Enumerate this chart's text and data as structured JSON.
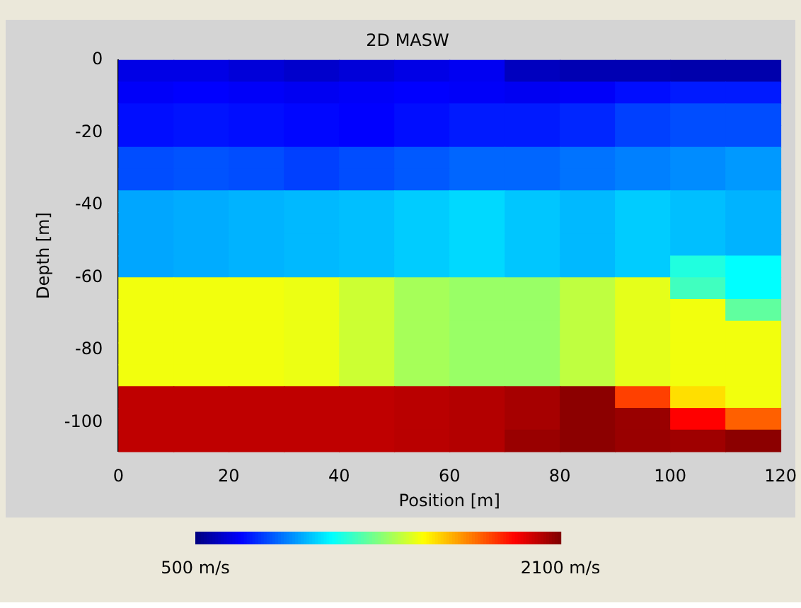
{
  "chart_data": {
    "type": "heatmap",
    "title": "2D MASW",
    "xlabel": "Position [m]",
    "ylabel": "Depth [m]",
    "x": [
      5,
      15,
      25,
      35,
      45,
      55,
      65,
      75,
      85,
      95,
      105,
      115
    ],
    "y": [
      -3,
      -9,
      -15,
      -21,
      -27,
      -33,
      -39,
      -45,
      -51,
      -57,
      -63,
      -69,
      -75,
      -81,
      -87,
      -93,
      -99,
      -105
    ],
    "cells": [
      [
        660,
        660,
        640,
        620,
        640,
        660,
        680,
        600,
        580,
        580,
        570,
        570
      ],
      [
        690,
        700,
        690,
        680,
        690,
        700,
        690,
        680,
        690,
        720,
        740,
        740
      ],
      [
        720,
        730,
        720,
        710,
        700,
        720,
        740,
        740,
        760,
        800,
        820,
        820
      ],
      [
        720,
        730,
        720,
        710,
        700,
        720,
        740,
        740,
        760,
        800,
        820,
        820
      ],
      [
        820,
        830,
        820,
        800,
        820,
        840,
        860,
        860,
        880,
        900,
        920,
        940
      ],
      [
        820,
        830,
        820,
        800,
        820,
        840,
        860,
        860,
        880,
        900,
        920,
        940
      ],
      [
        960,
        970,
        980,
        990,
        1000,
        1020,
        1040,
        1010,
        990,
        1020,
        1000,
        980
      ],
      [
        960,
        970,
        980,
        990,
        1000,
        1020,
        1040,
        1010,
        990,
        1020,
        1000,
        980
      ],
      [
        960,
        970,
        980,
        990,
        1000,
        1020,
        1040,
        1010,
        990,
        1020,
        1000,
        980
      ],
      [
        960,
        970,
        980,
        990,
        1000,
        1020,
        1040,
        1010,
        990,
        1020,
        1150,
        1100
      ],
      [
        1480,
        1480,
        1480,
        1470,
        1420,
        1360,
        1340,
        1340,
        1400,
        1460,
        1200,
        1100
      ],
      [
        1480,
        1480,
        1480,
        1470,
        1420,
        1360,
        1340,
        1340,
        1400,
        1460,
        1480,
        1250
      ],
      [
        1480,
        1480,
        1480,
        1470,
        1420,
        1360,
        1340,
        1340,
        1400,
        1460,
        1480,
        1480
      ],
      [
        1480,
        1480,
        1480,
        1470,
        1420,
        1360,
        1340,
        1340,
        1400,
        1460,
        1480,
        1480
      ],
      [
        1480,
        1480,
        1480,
        1470,
        1420,
        1360,
        1340,
        1340,
        1400,
        1460,
        1480,
        1480
      ],
      [
        2000,
        2000,
        2000,
        2000,
        2000,
        2010,
        2020,
        2040,
        2080,
        1800,
        1550,
        1480
      ],
      [
        2000,
        2000,
        2000,
        2000,
        2000,
        2010,
        2020,
        2040,
        2080,
        2060,
        1900,
        1750
      ],
      [
        2000,
        2000,
        2000,
        2000,
        2000,
        2010,
        2020,
        2060,
        2080,
        2060,
        2050,
        2080
      ]
    ],
    "xlim": [
      0,
      120
    ],
    "xticks": [
      0,
      20,
      40,
      60,
      80,
      100,
      120
    ],
    "ylim": [
      -108,
      0
    ],
    "yticks": [
      0,
      -20,
      -40,
      -60,
      -80,
      -100
    ],
    "clim": [
      500,
      2100
    ],
    "cticks": [
      {
        "value": 500,
        "label": "500 m/s"
      },
      {
        "value": 2100,
        "label": "2100 m/s"
      }
    ]
  }
}
